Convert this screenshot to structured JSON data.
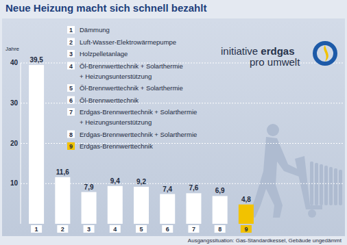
{
  "chart_data": {
    "type": "bar",
    "title": "Neue Heizung macht sich schnell bezahlt",
    "y_label": "Jahre",
    "categories": [
      "1",
      "2",
      "3",
      "4",
      "5",
      "6",
      "7",
      "8",
      "9"
    ],
    "values": [
      39.5,
      11.6,
      7.9,
      9.4,
      9.2,
      7.4,
      7.6,
      6.9,
      4.8
    ],
    "value_labels": [
      "39,5",
      "11,6",
      "7,9",
      "9,4",
      "9,2",
      "7,4",
      "7,6",
      "6,9",
      "4,8"
    ],
    "colors": [
      "#ffffff",
      "#ffffff",
      "#ffffff",
      "#ffffff",
      "#ffffff",
      "#ffffff",
      "#ffffff",
      "#ffffff",
      "#f2c200"
    ],
    "ylim": [
      0,
      40
    ],
    "yticks": [
      10,
      20,
      30,
      40
    ],
    "grid": true,
    "data_labels": true,
    "legend_entries": [
      {
        "label": "1",
        "lines": [
          "Dämmung"
        ]
      },
      {
        "label": "2",
        "lines": [
          "Luft-Wasser-Elektrowärmepumpe"
        ]
      },
      {
        "label": "3",
        "lines": [
          "Holzpelletanlage"
        ]
      },
      {
        "label": "4",
        "lines": [
          "Öl-Brennwerttechnik + Solarthermie",
          "+ Heizungsunterstützung"
        ]
      },
      {
        "label": "5",
        "lines": [
          "Öl-Brennwerttechnik + Solarthermie"
        ]
      },
      {
        "label": "6",
        "lines": [
          "Öl-Brennwerttechnik"
        ]
      },
      {
        "label": "7",
        "lines": [
          "Erdgas-Brennwerttechnik + Solarthermie",
          "+ Heizungsunterstützung"
        ]
      },
      {
        "label": "8",
        "lines": [
          "Erdgas-Brennwerttechnik + Solarthermie"
        ]
      },
      {
        "label": "9",
        "lines": [
          "Erdgas-Brennwerttechnik"
        ]
      }
    ],
    "logo": {
      "line1_light": "initiative",
      "line1_bold": "erdgas",
      "line2": "pro umwelt"
    },
    "note": "Ausgangssituation: Gas-Standardkessel, Gebäude ungedämmt"
  }
}
